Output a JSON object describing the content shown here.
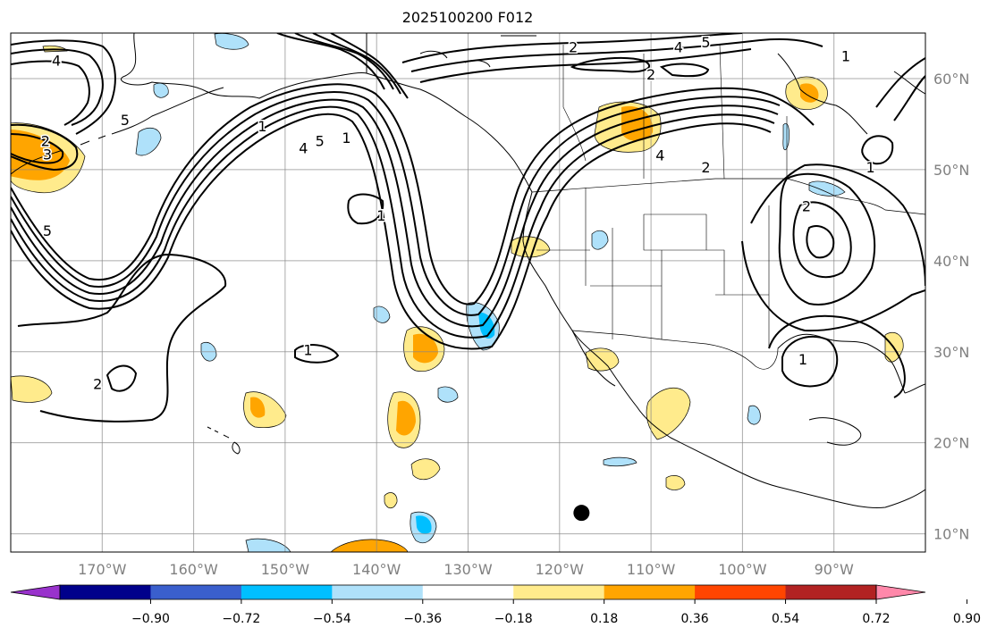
{
  "title": "2025100200 F012",
  "map": {
    "lon_min": -180,
    "lon_max": -80,
    "lat_min": 8,
    "lat_max": 65,
    "gridline_color": "#888888",
    "coastline_color": "#000000",
    "contour_color": "#000000",
    "background": "#ffffff",
    "lon_ticks": [
      {
        "value": -170,
        "label": "170°W"
      },
      {
        "value": -160,
        "label": "160°W"
      },
      {
        "value": -150,
        "label": "150°W"
      },
      {
        "value": -140,
        "label": "140°W"
      },
      {
        "value": -130,
        "label": "130°W"
      },
      {
        "value": -120,
        "label": "120°W"
      },
      {
        "value": -110,
        "label": "110°W"
      },
      {
        "value": -100,
        "label": "100°W"
      },
      {
        "value": -90,
        "label": "90°W"
      }
    ],
    "lat_ticks": [
      {
        "value": 10,
        "label": "10°N"
      },
      {
        "value": 20,
        "label": "20°N"
      },
      {
        "value": 30,
        "label": "30°N"
      },
      {
        "value": 40,
        "label": "40°N"
      },
      {
        "value": 50,
        "label": "50°N"
      },
      {
        "value": 60,
        "label": "60°N"
      }
    ],
    "marker": {
      "lon": -117.6,
      "lat": 12.3,
      "color": "#000000"
    },
    "contour_labels": [
      {
        "text": "4",
        "lon": -175,
        "lat": 62
      },
      {
        "text": "2",
        "lon": -118.5,
        "lat": 63.5
      },
      {
        "text": "4",
        "lon": -107,
        "lat": 63.5
      },
      {
        "text": "5",
        "lon": -104,
        "lat": 64
      },
      {
        "text": "2",
        "lon": -110,
        "lat": 60.5
      },
      {
        "text": "4",
        "lon": -109,
        "lat": 51.6
      },
      {
        "text": "2",
        "lon": -104,
        "lat": 50.3
      },
      {
        "text": "1",
        "lon": -152.5,
        "lat": 54.8
      },
      {
        "text": "4",
        "lon": -148,
        "lat": 52.4
      },
      {
        "text": "5",
        "lon": -146.2,
        "lat": 53.2
      },
      {
        "text": "1",
        "lon": -143.3,
        "lat": 53.5
      },
      {
        "text": "3",
        "lon": -176,
        "lat": 51.7
      },
      {
        "text": "2",
        "lon": -176.2,
        "lat": 53.2
      },
      {
        "text": "5",
        "lon": -167.5,
        "lat": 55.5
      },
      {
        "text": "5",
        "lon": -176,
        "lat": 43.3
      },
      {
        "text": "1",
        "lon": -139.5,
        "lat": 45
      },
      {
        "text": "2",
        "lon": -170.5,
        "lat": 26.5
      },
      {
        "text": "1",
        "lon": -147.5,
        "lat": 30.2
      },
      {
        "text": "2",
        "lon": -93,
        "lat": 46
      },
      {
        "text": "1",
        "lon": -88.7,
        "lat": 62.5
      },
      {
        "text": "1",
        "lon": -93.4,
        "lat": 29.2
      },
      {
        "text": "1",
        "lon": -86,
        "lat": 50.3
      }
    ]
  },
  "colorbar": {
    "colors": [
      "#9932cc",
      "#00008b",
      "#3a5fcd",
      "#00bfff",
      "#afe1fa",
      "#ffffff",
      "#ffeb8c",
      "#ffa500",
      "#ff4500",
      "#b22222",
      "#ff88aa"
    ],
    "ticks": [
      "−0.90",
      "−0.72",
      "−0.54",
      "−0.36",
      "−0.18",
      "0.18",
      "0.36",
      "0.54",
      "0.72",
      "0.90"
    ]
  }
}
